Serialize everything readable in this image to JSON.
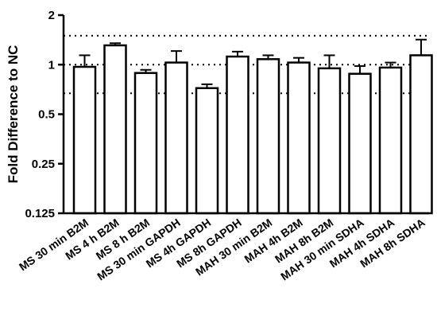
{
  "chart_data": {
    "type": "bar",
    "title": "",
    "xlabel": "",
    "ylabel": "Fold Difference to NC",
    "y_scale": "log2",
    "ylim": [
      0.125,
      2
    ],
    "y_ticks": [
      0.125,
      0.25,
      0.5,
      1,
      2
    ],
    "y_tick_labels": [
      "0.125",
      "0.25",
      "0.5",
      "1",
      "2"
    ],
    "reference_lines": [
      0.67,
      1.0,
      1.5
    ],
    "reference_line_style": "dotted",
    "grid": false,
    "legend": "none",
    "categories": [
      "MS 30 min B2M",
      "MS 4 h B2M",
      "MS 8 h B2M",
      "MS 30 min GAPDH",
      "MS 4h GAPDH",
      "MS 8h GAPDH",
      "MAH 30 min B2M",
      "MAH 4h B2M",
      "MAH 8h B2M",
      "MAH 30 min SDHA",
      "MAH 4h SDHA",
      "MAH 8h SDHA"
    ],
    "values": [
      0.97,
      1.31,
      0.89,
      1.03,
      0.72,
      1.12,
      1.08,
      1.03,
      0.95,
      0.88,
      0.96,
      1.14
    ],
    "error_upper": [
      1.14,
      1.35,
      0.93,
      1.21,
      0.76,
      1.2,
      1.14,
      1.1,
      1.14,
      0.98,
      1.03,
      1.42
    ],
    "bar_fill": "#ffffff",
    "bar_stroke": "#000000"
  }
}
